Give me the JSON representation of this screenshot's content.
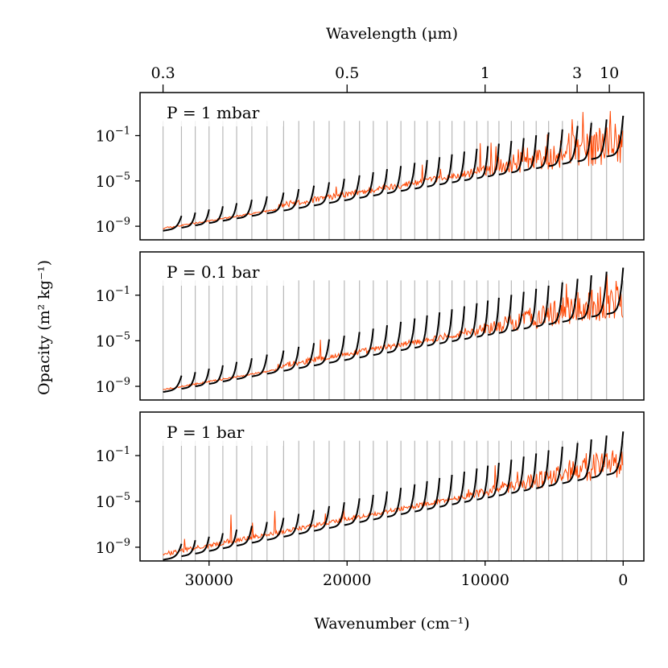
{
  "chart_data": {
    "type": "line",
    "top_axis": {
      "label": "Wavelength (μm)",
      "ticks": [
        {
          "label": "0.3",
          "wavelength_um": 0.3
        },
        {
          "label": "0.5",
          "wavelength_um": 0.5
        },
        {
          "label": "1",
          "wavelength_um": 1
        },
        {
          "label": "3",
          "wavelength_um": 3
        },
        {
          "label": "10",
          "wavelength_um": 10
        }
      ]
    },
    "xaxis": {
      "label": "Wavenumber (cm⁻¹)",
      "range": [
        35000,
        -1500
      ],
      "ticks": [
        30000,
        20000,
        10000,
        0
      ],
      "reversed": true
    },
    "yaxis": {
      "label": "Opacity (m² kg⁻¹)",
      "scale": "log",
      "ticks": [
        -9,
        -5,
        -1
      ]
    },
    "bin_edges_cm": [
      33333,
      32000,
      31000,
      30000,
      29000,
      28000,
      26900,
      25800,
      24600,
      23500,
      22400,
      21300,
      20200,
      19100,
      18100,
      17100,
      16100,
      15100,
      14200,
      13300,
      12400,
      11500,
      10600,
      9800,
      9000,
      8100,
      7200,
      6300,
      5400,
      4400,
      3300,
      2300,
      1200,
      0
    ],
    "series_colors": {
      "high_resolution": "#ff4500",
      "k_coefficients": "#000000",
      "bin_edges": "#b8b8b8"
    },
    "panels": [
      {
        "label": "P = 1 mbar",
        "ylim": [
          -10.2,
          2.8
        ],
        "base_at_start": -9.4,
        "base_at_end": -2.6,
        "segment_rise": 2.0,
        "noise": 1.0,
        "upper_max": 0.3
      },
      {
        "label": "P = 0.1 bar",
        "ylim": [
          -10.2,
          2.8
        ],
        "base_at_start": -9.5,
        "base_at_end": -2.4,
        "segment_rise": 2.3,
        "noise": 0.9,
        "upper_max": 0.3
      },
      {
        "label": "P = 1 bar",
        "ylim": [
          -10.2,
          2.8
        ],
        "base_at_start": -10.1,
        "base_at_end": -2.4,
        "segment_rise": 2.1,
        "noise": 0.7,
        "upper_max": 0.3
      }
    ]
  }
}
